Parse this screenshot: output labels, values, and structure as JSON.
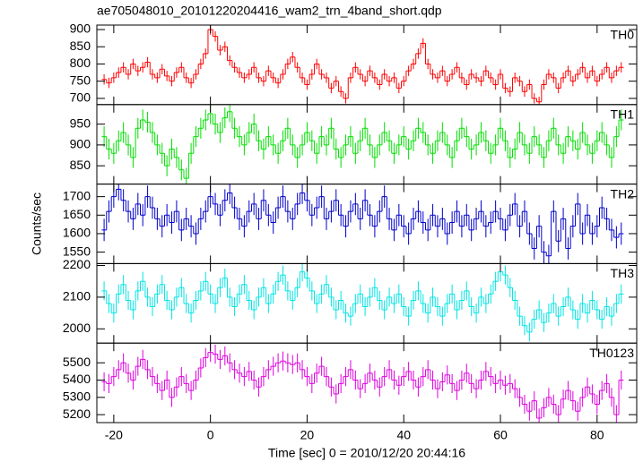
{
  "title": "ae705048010_20101220204416_wam2_trn_4band_short.qdp",
  "ylabel": "Counts/sec",
  "xaxis": {
    "label": "Time [sec] 0 = 2010/12/20 20:44:16",
    "xlim": [
      -23.5,
      88.2
    ],
    "xticks": [
      -20,
      0,
      20,
      40,
      60,
      80
    ],
    "x": [
      -22,
      -21,
      -20,
      -19,
      -18,
      -17,
      -16,
      -15,
      -14,
      -13,
      -12,
      -11,
      -10,
      -9,
      -8,
      -7,
      -6,
      -5,
      -4,
      -3,
      -2,
      -1,
      0,
      1,
      2,
      3,
      4,
      5,
      6,
      7,
      8,
      9,
      10,
      11,
      12,
      13,
      14,
      15,
      16,
      17,
      18,
      19,
      20,
      21,
      22,
      23,
      24,
      25,
      26,
      27,
      28,
      29,
      30,
      31,
      32,
      33,
      34,
      35,
      36,
      37,
      38,
      39,
      40,
      41,
      42,
      43,
      44,
      45,
      46,
      47,
      48,
      49,
      50,
      51,
      52,
      53,
      54,
      55,
      56,
      57,
      58,
      59,
      60,
      61,
      62,
      63,
      64,
      65,
      66,
      67,
      68,
      69,
      70,
      71,
      72,
      73,
      74,
      75,
      76,
      77,
      78,
      79,
      80,
      81,
      82,
      83,
      84,
      85
    ]
  },
  "chart_data": [
    {
      "type": "step",
      "name": "TH0",
      "color": "#ff0000",
      "error": 15,
      "ylim": [
        682,
        913
      ],
      "yticks": [
        700,
        750,
        800,
        850,
        900
      ],
      "values": [
        755,
        745,
        760,
        775,
        790,
        770,
        800,
        780,
        790,
        805,
        770,
        760,
        785,
        765,
        750,
        775,
        790,
        760,
        745,
        770,
        800,
        830,
        900,
        880,
        840,
        850,
        810,
        790,
        775,
        760,
        770,
        790,
        760,
        750,
        780,
        760,
        745,
        770,
        800,
        820,
        790,
        760,
        740,
        770,
        800,
        770,
        760,
        730,
        750,
        720,
        700,
        760,
        790,
        770,
        750,
        780,
        760,
        740,
        770,
        750,
        760,
        730,
        750,
        780,
        800,
        830,
        860,
        800,
        770,
        760,
        780,
        750,
        770,
        790,
        760,
        740,
        770,
        760,
        750,
        780,
        760,
        740,
        770,
        730,
        720,
        760,
        750,
        720,
        740,
        700,
        690,
        740,
        770,
        760,
        730,
        760,
        780,
        750,
        770,
        790,
        760,
        780,
        750,
        770,
        790,
        760,
        780,
        790
      ]
    },
    {
      "type": "step",
      "name": "TH1",
      "color": "#00e000",
      "error": 25,
      "ylim": [
        806,
        997
      ],
      "yticks": [
        850,
        900,
        950
      ],
      "values": [
        920,
        890,
        880,
        910,
        930,
        900,
        870,
        940,
        960,
        955,
        930,
        900,
        880,
        850,
        890,
        870,
        840,
        820,
        880,
        920,
        940,
        960,
        975,
        950,
        930,
        965,
        980,
        940,
        920,
        900,
        930,
        950,
        910,
        890,
        920,
        900,
        880,
        910,
        940,
        900,
        870,
        900,
        930,
        910,
        880,
        920,
        900,
        940,
        890,
        870,
        900,
        920,
        880,
        910,
        940,
        900,
        870,
        900,
        930,
        910,
        880,
        900,
        920,
        890,
        910,
        940,
        930,
        900,
        880,
        910,
        930,
        900,
        870,
        910,
        940,
        920,
        890,
        900,
        930,
        910,
        880,
        900,
        940,
        910,
        870,
        890,
        930,
        900,
        880,
        920,
        900,
        870,
        910,
        940,
        900,
        880,
        920,
        910,
        890,
        930,
        900,
        880,
        910,
        930,
        900,
        870,
        920,
        960
      ]
    },
    {
      "type": "step",
      "name": "TH2",
      "color": "#0000cc",
      "error": 30,
      "ylim": [
        1519,
        1734
      ],
      "yticks": [
        1550,
        1600,
        1650,
        1700
      ],
      "values": [
        1610,
        1660,
        1700,
        1720,
        1690,
        1660,
        1640,
        1680,
        1650,
        1700,
        1670,
        1640,
        1620,
        1650,
        1630,
        1660,
        1610,
        1640,
        1620,
        1600,
        1640,
        1660,
        1700,
        1680,
        1650,
        1690,
        1710,
        1670,
        1640,
        1620,
        1660,
        1680,
        1640,
        1690,
        1650,
        1630,
        1670,
        1700,
        1660,
        1640,
        1680,
        1710,
        1690,
        1650,
        1670,
        1700,
        1640,
        1660,
        1690,
        1650,
        1620,
        1660,
        1680,
        1640,
        1690,
        1650,
        1620,
        1660,
        1700,
        1640,
        1610,
        1650,
        1620,
        1600,
        1640,
        1660,
        1630,
        1610,
        1650,
        1620,
        1640,
        1600,
        1630,
        1660,
        1620,
        1650,
        1610,
        1640,
        1660,
        1620,
        1630,
        1660,
        1640,
        1610,
        1650,
        1680,
        1620,
        1660,
        1600,
        1560,
        1620,
        1550,
        1540,
        1660,
        1580,
        1640,
        1560,
        1620,
        1680,
        1600,
        1650,
        1600,
        1620,
        1670,
        1640,
        1610,
        1590,
        1600
      ]
    },
    {
      "type": "step",
      "name": "TH3",
      "color": "#00e5e5",
      "error": 30,
      "ylim": [
        1955,
        2206
      ],
      "yticks": [
        2000,
        2100,
        2200
      ],
      "values": [
        2120,
        2080,
        2050,
        2110,
        2140,
        2090,
        2060,
        2120,
        2150,
        2100,
        2070,
        2110,
        2140,
        2090,
        2060,
        2100,
        2130,
        2080,
        2050,
        2090,
        2120,
        2150,
        2110,
        2080,
        2130,
        2160,
        2100,
        2070,
        2110,
        2140,
        2090,
        2060,
        2100,
        2130,
        2080,
        2110,
        2150,
        2170,
        2120,
        2090,
        2130,
        2180,
        2160,
        2120,
        2080,
        2110,
        2140,
        2100,
        2060,
        2090,
        2050,
        2040,
        2080,
        2110,
        2070,
        2100,
        2130,
        2090,
        2060,
        2100,
        2080,
        2110,
        2070,
        2040,
        2090,
        2120,
        2080,
        2050,
        2100,
        2070,
        2040,
        2080,
        2110,
        2060,
        2090,
        2120,
        2070,
        2050,
        2100,
        2080,
        2110,
        2150,
        2180,
        2170,
        2130,
        2090,
        2040,
        2010,
        1990,
        2030,
        2060,
        2020,
        2050,
        2080,
        2040,
        2070,
        2100,
        2060,
        2030,
        2080,
        2050,
        2090,
        2060,
        2030,
        2070,
        2040,
        2080,
        2110
      ]
    },
    {
      "type": "step",
      "name": "TH0123",
      "color": "#e000e0",
      "error": 55,
      "ylim": [
        5154,
        5614
      ],
      "yticks": [
        5200,
        5300,
        5400,
        5500
      ],
      "values": [
        5390,
        5380,
        5420,
        5460,
        5500,
        5440,
        5400,
        5480,
        5520,
        5460,
        5420,
        5380,
        5340,
        5400,
        5300,
        5360,
        5420,
        5380,
        5340,
        5400,
        5470,
        5530,
        5560,
        5550,
        5520,
        5540,
        5500,
        5460,
        5440,
        5420,
        5450,
        5400,
        5360,
        5420,
        5460,
        5480,
        5500,
        5510,
        5500,
        5490,
        5500,
        5460,
        5420,
        5380,
        5440,
        5480,
        5420,
        5360,
        5320,
        5380,
        5420,
        5460,
        5400,
        5350,
        5380,
        5440,
        5400,
        5360,
        5420,
        5460,
        5400,
        5370,
        5420,
        5450,
        5400,
        5360,
        5420,
        5460,
        5400,
        5350,
        5390,
        5430,
        5380,
        5340,
        5400,
        5440,
        5380,
        5350,
        5400,
        5450,
        5420,
        5380,
        5400,
        5370,
        5380,
        5350,
        5300,
        5260,
        5220,
        5280,
        5180,
        5240,
        5300,
        5260,
        5200,
        5290,
        5340,
        5280,
        5220,
        5300,
        5360,
        5320,
        5260,
        5340,
        5380,
        5300,
        5200,
        5400
      ]
    }
  ]
}
